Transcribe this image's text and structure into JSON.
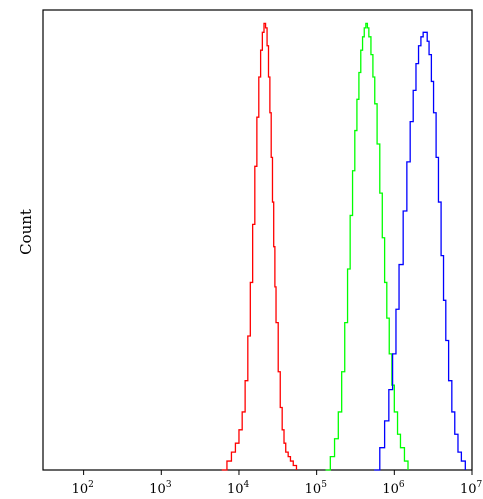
{
  "chart_data": {
    "type": "line",
    "title": "",
    "xlabel": "",
    "ylabel": "Count",
    "x_scale": "log",
    "xlim": [
      30,
      10000000
    ],
    "ylim": [
      0,
      1.03
    ],
    "grid": false,
    "legend": "none",
    "x_ticks": [
      {
        "value": 100,
        "base": "10",
        "exp": "2"
      },
      {
        "value": 1000,
        "base": "10",
        "exp": "3"
      },
      {
        "value": 10000,
        "base": "10",
        "exp": "4"
      },
      {
        "value": 100000,
        "base": "10",
        "exp": "5"
      },
      {
        "value": 1000000,
        "base": "10",
        "exp": "6"
      },
      {
        "value": 10000000,
        "base": "10",
        "exp": "7"
      }
    ],
    "series": [
      {
        "color": "#ff0000",
        "x": [
          6000,
          7000,
          8000,
          9000,
          10000,
          11000,
          12000,
          13000,
          14000,
          15000,
          16000,
          17000,
          18000,
          19000,
          20000,
          21000,
          22000,
          23000,
          24000,
          25000,
          26000,
          27000,
          28000,
          29000,
          30000,
          32000,
          34000,
          36000,
          38000,
          40000,
          43000,
          46000,
          50000,
          55000
        ],
        "y": [
          0.0,
          0.02,
          0.04,
          0.06,
          0.09,
          0.13,
          0.2,
          0.3,
          0.42,
          0.55,
          0.68,
          0.79,
          0.88,
          0.94,
          0.98,
          1.0,
          0.99,
          0.95,
          0.88,
          0.8,
          0.7,
          0.6,
          0.5,
          0.41,
          0.33,
          0.22,
          0.14,
          0.09,
          0.06,
          0.04,
          0.03,
          0.02,
          0.01,
          0.0
        ]
      },
      {
        "color": "#00ff00",
        "x": [
          130000,
          150000,
          170000,
          190000,
          210000,
          230000,
          250000,
          270000,
          290000,
          310000,
          330000,
          350000,
          370000,
          390000,
          410000,
          430000,
          450000,
          470000,
          500000,
          530000,
          560000,
          600000,
          650000,
          700000,
          750000,
          800000,
          860000,
          930000,
          1000000,
          1100000,
          1200000,
          1350000,
          1500000
        ],
        "y": [
          0.0,
          0.03,
          0.07,
          0.13,
          0.22,
          0.33,
          0.45,
          0.57,
          0.67,
          0.76,
          0.83,
          0.89,
          0.94,
          0.97,
          0.99,
          1.0,
          0.99,
          0.97,
          0.93,
          0.88,
          0.82,
          0.73,
          0.62,
          0.52,
          0.42,
          0.34,
          0.26,
          0.19,
          0.13,
          0.08,
          0.05,
          0.02,
          0.0
        ]
      },
      {
        "color": "#0000ff",
        "x": [
          550000,
          650000,
          750000,
          850000,
          950000,
          1050000,
          1150000,
          1300000,
          1450000,
          1600000,
          1750000,
          1900000,
          2050000,
          2200000,
          2350000,
          2500000,
          2650000,
          2800000,
          3000000,
          3200000,
          3450000,
          3700000,
          4000000,
          4300000,
          4600000,
          5000000,
          5500000,
          6000000,
          6600000,
          7300000,
          8200000
        ],
        "y": [
          0.0,
          0.05,
          0.11,
          0.18,
          0.26,
          0.36,
          0.46,
          0.58,
          0.69,
          0.78,
          0.85,
          0.91,
          0.95,
          0.97,
          0.98,
          0.98,
          0.96,
          0.93,
          0.87,
          0.8,
          0.7,
          0.6,
          0.48,
          0.38,
          0.29,
          0.2,
          0.13,
          0.08,
          0.04,
          0.02,
          0.0
        ]
      }
    ]
  }
}
